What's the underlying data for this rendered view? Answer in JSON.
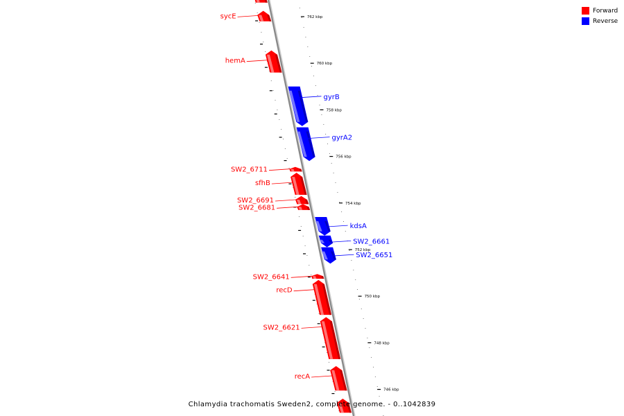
{
  "colors": {
    "forward": "#ff0000",
    "reverse": "#0000ff",
    "backbone": "#888888"
  },
  "legend": {
    "forward_label": "Forward",
    "reverse_label": "Reverse"
  },
  "caption": "Chlamydia trachomatis Sweden2, complete genome. - 0..1042839",
  "scale_marks": [
    {
      "kbp": 762,
      "label": "762 kbp"
    },
    {
      "kbp": 760,
      "label": "760 kbp"
    },
    {
      "kbp": 758,
      "label": "758 kbp"
    },
    {
      "kbp": 756,
      "label": "756 kbp"
    },
    {
      "kbp": 754,
      "label": "754 kbp"
    },
    {
      "kbp": 752,
      "label": "752 kbp"
    },
    {
      "kbp": 750,
      "label": "750 kbp"
    },
    {
      "kbp": 748,
      "label": "748 kbp"
    },
    {
      "kbp": 746,
      "label": "746 kbp"
    }
  ],
  "genes": [
    {
      "name": "",
      "strand": "forward",
      "start_kbp": 763.2,
      "end_kbp": 762.6
    },
    {
      "name": "sycE",
      "strand": "forward",
      "start_kbp": 762.25,
      "end_kbp": 761.8
    },
    {
      "name": "hemA",
      "strand": "forward",
      "start_kbp": 760.55,
      "end_kbp": 759.6
    },
    {
      "name": "gyrB",
      "strand": "reverse",
      "start_kbp": 759.0,
      "end_kbp": 757.3
    },
    {
      "name": "gyrA2",
      "strand": "reverse",
      "start_kbp": 757.25,
      "end_kbp": 755.8
    },
    {
      "name": "SW2_6711",
      "strand": "forward",
      "start_kbp": 755.55,
      "end_kbp": 755.35
    },
    {
      "name": "sfhB",
      "strand": "forward",
      "start_kbp": 755.3,
      "end_kbp": 754.35
    },
    {
      "name": "SW2_6691",
      "strand": "forward",
      "start_kbp": 754.3,
      "end_kbp": 753.95
    },
    {
      "name": "SW2_6681",
      "strand": "forward",
      "start_kbp": 753.95,
      "end_kbp": 753.7
    },
    {
      "name": "kdsA",
      "strand": "reverse",
      "start_kbp": 753.4,
      "end_kbp": 752.6
    },
    {
      "name": "SW2_6661",
      "strand": "reverse",
      "start_kbp": 752.6,
      "end_kbp": 752.1
    },
    {
      "name": "SW2_6651",
      "strand": "reverse",
      "start_kbp": 752.1,
      "end_kbp": 751.4
    },
    {
      "name": "SW2_6641",
      "strand": "forward",
      "start_kbp": 750.95,
      "end_kbp": 750.75
    },
    {
      "name": "recD",
      "strand": "forward",
      "start_kbp": 750.7,
      "end_kbp": 749.2
    },
    {
      "name": "SW2_6621",
      "strand": "forward",
      "start_kbp": 749.1,
      "end_kbp": 747.3
    },
    {
      "name": "recA",
      "strand": "forward",
      "start_kbp": 747.0,
      "end_kbp": 745.95
    },
    {
      "name": "",
      "strand": "forward",
      "start_kbp": 745.6,
      "end_kbp": 745.0
    }
  ]
}
